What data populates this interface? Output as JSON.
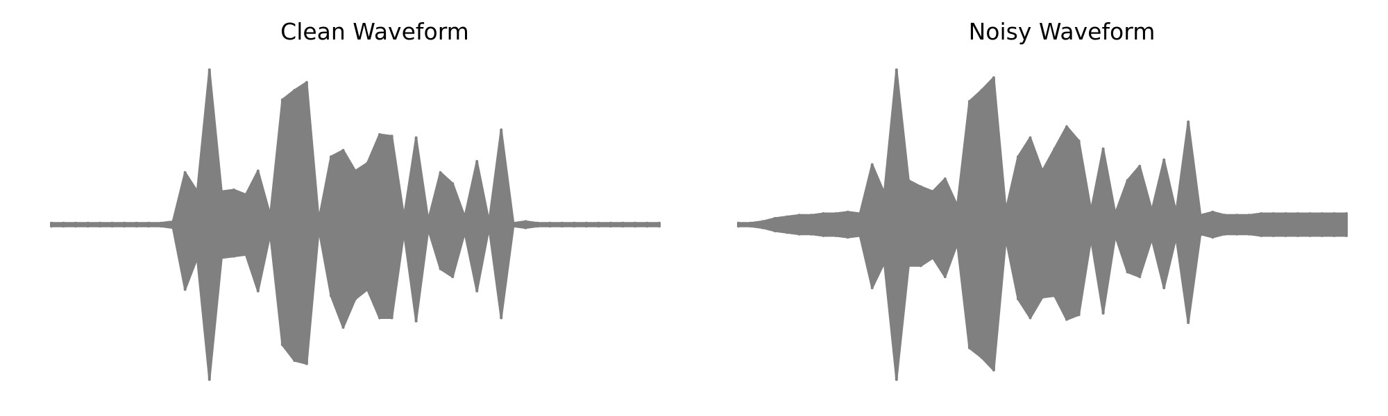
{
  "figure": {
    "line_color": "#808080",
    "background": "#ffffff"
  },
  "chart_data": [
    {
      "type": "line",
      "title": "Clean Waveform",
      "xlabel": "",
      "ylabel": "",
      "axes_visible": false,
      "grid": false,
      "ylim": [
        -1,
        1
      ],
      "x": [
        0.0,
        0.02,
        0.04,
        0.06,
        0.08,
        0.1,
        0.12,
        0.14,
        0.16,
        0.18,
        0.2,
        0.22,
        0.24,
        0.26,
        0.28,
        0.3,
        0.32,
        0.34,
        0.36,
        0.38,
        0.4,
        0.42,
        0.44,
        0.46,
        0.48,
        0.5,
        0.52,
        0.54,
        0.56,
        0.58,
        0.6,
        0.62,
        0.64,
        0.66,
        0.68,
        0.7,
        0.72,
        0.74,
        0.76,
        0.78,
        0.8,
        0.82,
        0.84,
        0.86,
        0.88,
        0.9,
        0.92,
        0.94,
        0.96,
        0.98,
        1.0
      ],
      "envelope_upper": [
        0.01,
        0.01,
        0.01,
        0.01,
        0.01,
        0.01,
        0.01,
        0.01,
        0.01,
        0.01,
        0.02,
        0.33,
        0.21,
        0.98,
        0.21,
        0.22,
        0.19,
        0.34,
        0.06,
        0.79,
        0.85,
        0.9,
        0.03,
        0.43,
        0.47,
        0.34,
        0.39,
        0.57,
        0.56,
        0.05,
        0.55,
        0.03,
        0.33,
        0.26,
        0.05,
        0.4,
        0.02,
        0.6,
        0.01,
        0.02,
        0.01,
        0.01,
        0.01,
        0.01,
        0.01,
        0.01,
        0.01,
        0.01,
        0.01,
        0.01,
        0.01
      ],
      "envelope_lower": [
        -0.01,
        -0.01,
        -0.01,
        -0.01,
        -0.01,
        -0.01,
        -0.01,
        -0.01,
        -0.01,
        -0.01,
        -0.02,
        -0.41,
        -0.21,
        -0.98,
        -0.21,
        -0.2,
        -0.19,
        -0.42,
        -0.06,
        -0.76,
        -0.86,
        -0.88,
        -0.03,
        -0.45,
        -0.65,
        -0.47,
        -0.41,
        -0.59,
        -0.59,
        -0.05,
        -0.61,
        -0.03,
        -0.28,
        -0.33,
        -0.05,
        -0.42,
        -0.02,
        -0.59,
        -0.01,
        -0.02,
        -0.01,
        -0.01,
        -0.01,
        -0.01,
        -0.01,
        -0.01,
        -0.01,
        -0.01,
        -0.01,
        -0.01,
        -0.01
      ]
    },
    {
      "type": "line",
      "title": "Noisy Waveform",
      "xlabel": "",
      "ylabel": "",
      "axes_visible": false,
      "grid": false,
      "ylim": [
        -1,
        1
      ],
      "x": [
        0.0,
        0.02,
        0.04,
        0.06,
        0.08,
        0.1,
        0.12,
        0.14,
        0.16,
        0.18,
        0.2,
        0.22,
        0.24,
        0.26,
        0.28,
        0.3,
        0.32,
        0.34,
        0.36,
        0.38,
        0.4,
        0.42,
        0.44,
        0.46,
        0.48,
        0.5,
        0.52,
        0.54,
        0.56,
        0.58,
        0.6,
        0.62,
        0.64,
        0.66,
        0.68,
        0.7,
        0.72,
        0.74,
        0.76,
        0.78,
        0.8,
        0.82,
        0.84,
        0.86,
        0.88,
        0.9,
        0.92,
        0.94,
        0.96,
        0.98,
        1.0
      ],
      "envelope_upper": [
        0.01,
        0.01,
        0.02,
        0.04,
        0.05,
        0.06,
        0.06,
        0.07,
        0.07,
        0.08,
        0.07,
        0.38,
        0.2,
        0.98,
        0.28,
        0.24,
        0.21,
        0.29,
        0.12,
        0.78,
        0.85,
        0.93,
        0.09,
        0.43,
        0.55,
        0.34,
        0.48,
        0.62,
        0.53,
        0.09,
        0.48,
        0.07,
        0.28,
        0.37,
        0.09,
        0.41,
        0.08,
        0.65,
        0.06,
        0.08,
        0.06,
        0.06,
        0.06,
        0.07,
        0.07,
        0.07,
        0.07,
        0.07,
        0.07,
        0.07,
        0.07
      ],
      "envelope_lower": [
        -0.01,
        -0.01,
        -0.02,
        -0.04,
        -0.05,
        -0.06,
        -0.06,
        -0.07,
        -0.07,
        -0.08,
        -0.07,
        -0.4,
        -0.24,
        -0.98,
        -0.26,
        -0.26,
        -0.21,
        -0.33,
        -0.12,
        -0.78,
        -0.84,
        -0.92,
        -0.09,
        -0.47,
        -0.59,
        -0.46,
        -0.45,
        -0.6,
        -0.57,
        -0.09,
        -0.56,
        -0.07,
        -0.3,
        -0.33,
        -0.09,
        -0.4,
        -0.08,
        -0.62,
        -0.06,
        -0.08,
        -0.06,
        -0.06,
        -0.06,
        -0.07,
        -0.07,
        -0.07,
        -0.07,
        -0.07,
        -0.07,
        -0.07,
        -0.07
      ]
    }
  ]
}
